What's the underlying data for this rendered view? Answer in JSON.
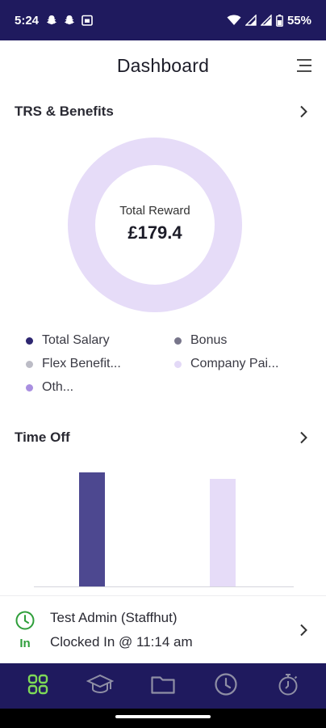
{
  "status_bar": {
    "time": "5:24",
    "battery": "55%"
  },
  "header": {
    "title": "Dashboard"
  },
  "trs": {
    "title": "TRS & Benefits",
    "center_caption": "Total Reward",
    "center_value": "£179.4",
    "legend": [
      {
        "label": "Total Salary",
        "color": "#2d2670"
      },
      {
        "label": "Bonus",
        "color": "#77758a"
      },
      {
        "label": "Flex Benefit...",
        "color": "#bcbcc6"
      },
      {
        "label": "Company Pai...",
        "color": "#e3d9f7"
      },
      {
        "label": "Oth...",
        "color": "#a98fe0"
      }
    ]
  },
  "time_off": {
    "title": "Time Off"
  },
  "chart_data": {
    "type": "bar",
    "categories": [
      "",
      ""
    ],
    "values": [
      116,
      109
    ],
    "colors": [
      "#4d4890",
      "#e6dcf8"
    ],
    "xlabel": "",
    "ylabel": "",
    "grid": false
  },
  "clock": {
    "status": "In",
    "name": "Test Admin (Staffhut)",
    "detail": "Clocked In @ 11:14 am"
  },
  "nav": {
    "items": [
      {
        "icon": "grid-icon",
        "active": true
      },
      {
        "icon": "graduation-cap-icon",
        "active": false
      },
      {
        "icon": "folder-icon",
        "active": false
      },
      {
        "icon": "clock-icon",
        "active": false
      },
      {
        "icon": "stopwatch-icon",
        "active": false
      }
    ]
  },
  "colors": {
    "brand": "#1f1a5e",
    "donut_ring": "#e6dcf8",
    "active_nav": "#7ed957",
    "clock_in_green": "#2e9e3a"
  }
}
